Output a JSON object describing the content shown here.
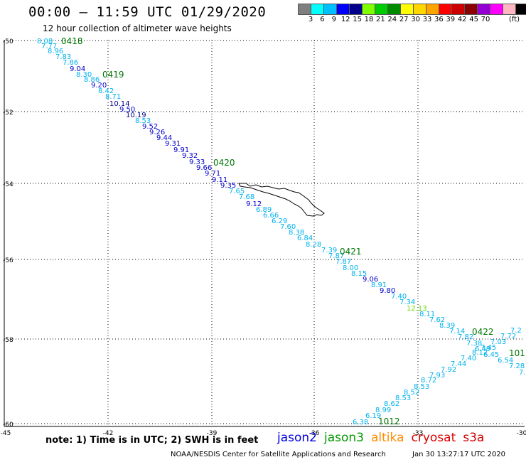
{
  "title": "00:00 — 11:59 UTC 01/29/2020",
  "subtitle": "12 hour collection of altimeter wave heights",
  "scale": {
    "colors": [
      "#7f7f7f",
      "#00ffff",
      "#00bfff",
      "#0000ff",
      "#00008b",
      "#7fff00",
      "#00cd00",
      "#008b00",
      "#ffff00",
      "#ffd700",
      "#ffa500",
      "#ff0000",
      "#cd0000",
      "#8b0000",
      "#9400d3",
      "#ff00ff",
      "#ffb6c1",
      "#000000"
    ],
    "labels": [
      "3",
      "6",
      "9",
      "12",
      "15",
      "18",
      "21",
      "24",
      "27",
      "30",
      "33",
      "36",
      "39",
      "42",
      "45",
      "70"
    ],
    "unit": "(ft)"
  },
  "map": {
    "lon_labels": [
      "-42",
      "-39",
      "-36",
      "-33"
    ],
    "lat_labels": [
      "-50",
      "-52",
      "-54",
      "-56",
      "-58",
      "-60"
    ],
    "corner_labels": [
      "-45",
      "-30"
    ],
    "times": [
      {
        "label": "0418",
        "color": "#007700"
      },
      {
        "label": "0419",
        "color": "#007700"
      },
      {
        "label": "0420",
        "color": "#007700"
      },
      {
        "label": "0421",
        "color": "#007700"
      },
      {
        "label": "0422",
        "color": "#007700"
      },
      {
        "label": "1012",
        "color": "#007700"
      },
      {
        "label": "101",
        "color": "#007700"
      }
    ],
    "track1_values": [
      {
        "v": "8.08",
        "c": "#00b2ee"
      },
      {
        "v": "7.77",
        "c": "#00b2ee"
      },
      {
        "v": "8.96",
        "c": "#00b2ee"
      },
      {
        "v": "7.83",
        "c": "#00b2ee"
      },
      {
        "v": "7.86",
        "c": "#00b2ee"
      },
      {
        "v": "9.04",
        "c": "#0000cc"
      },
      {
        "v": "8.30",
        "c": "#00b2ee"
      },
      {
        "v": "8.86",
        "c": "#00b2ee"
      },
      {
        "v": "9.20",
        "c": "#0000cc"
      },
      {
        "v": "8.42",
        "c": "#00b2ee"
      },
      {
        "v": "8.71",
        "c": "#00b2ee"
      },
      {
        "v": "10.14",
        "c": "#00008b"
      },
      {
        "v": "9.50",
        "c": "#0000cc"
      },
      {
        "v": "10.19",
        "c": "#00008b"
      },
      {
        "v": "8.53",
        "c": "#00b2ee"
      },
      {
        "v": "9.52",
        "c": "#0000cc"
      },
      {
        "v": "9.26",
        "c": "#0000cc"
      },
      {
        "v": "9.44",
        "c": "#0000cc"
      },
      {
        "v": "9.31",
        "c": "#0000cc"
      },
      {
        "v": "9.91",
        "c": "#0000cc"
      },
      {
        "v": "9.32",
        "c": "#0000cc"
      },
      {
        "v": "9.33",
        "c": "#0000cc"
      },
      {
        "v": "9.66",
        "c": "#0000cc"
      },
      {
        "v": "9.71",
        "c": "#0000cc"
      },
      {
        "v": "9.11",
        "c": "#0000cc"
      },
      {
        "v": "9.35",
        "c": "#0000cc"
      },
      {
        "v": "7.65",
        "c": "#00b2ee"
      },
      {
        "v": "7.68",
        "c": "#00b2ee"
      },
      {
        "v": "9.12",
        "c": "#0000cc"
      },
      {
        "v": "6.89",
        "c": "#00b2ee"
      },
      {
        "v": "6.66",
        "c": "#00b2ee"
      },
      {
        "v": "6.29",
        "c": "#00b2ee"
      },
      {
        "v": "7.60",
        "c": "#00b2ee"
      },
      {
        "v": "8.38",
        "c": "#00b2ee"
      },
      {
        "v": "6.84",
        "c": "#00b2ee"
      },
      {
        "v": "8.28",
        "c": "#00b2ee"
      },
      {
        "v": "7.39",
        "c": "#00b2ee"
      },
      {
        "v": "7.87",
        "c": "#00b2ee"
      },
      {
        "v": "7.87",
        "c": "#00b2ee"
      },
      {
        "v": "8.00",
        "c": "#00b2ee"
      },
      {
        "v": "8.15",
        "c": "#00b2ee"
      },
      {
        "v": "9.06",
        "c": "#0000cc"
      },
      {
        "v": "8.91",
        "c": "#00b2ee"
      },
      {
        "v": "9.80",
        "c": "#0000cc"
      },
      {
        "v": "7.40",
        "c": "#00b2ee"
      },
      {
        "v": "7.34",
        "c": "#00b2ee"
      },
      {
        "v": "12.13",
        "c": "#66dd00"
      },
      {
        "v": "8.11",
        "c": "#00b2ee"
      },
      {
        "v": "7.62",
        "c": "#00b2ee"
      },
      {
        "v": "8.39",
        "c": "#00b2ee"
      },
      {
        "v": "7.14",
        "c": "#00b2ee"
      },
      {
        "v": "7.82",
        "c": "#00b2ee"
      },
      {
        "v": "7.38",
        "c": "#00b2ee"
      },
      {
        "v": "6.49",
        "c": "#00b2ee"
      },
      {
        "v": "6.45",
        "c": "#00b2ee"
      },
      {
        "v": "6.54",
        "c": "#00b2ee"
      },
      {
        "v": "7.28",
        "c": "#00b2ee"
      },
      {
        "v": "7.",
        "c": "#00b2ee"
      }
    ],
    "track2_values": [
      {
        "v": "6.38",
        "c": "#00b2ee"
      },
      {
        "v": "6.19",
        "c": "#00b2ee"
      },
      {
        "v": "8.99",
        "c": "#00b2ee"
      },
      {
        "v": "8.62",
        "c": "#00b2ee"
      },
      {
        "v": "8.53",
        "c": "#00b2ee"
      },
      {
        "v": "8.52",
        "c": "#00b2ee"
      },
      {
        "v": "8.53",
        "c": "#00b2ee"
      },
      {
        "v": "8.72",
        "c": "#00b2ee"
      },
      {
        "v": "7.93",
        "c": "#00b2ee"
      },
      {
        "v": "7.92",
        "c": "#00b2ee"
      },
      {
        "v": "7.44",
        "c": "#00b2ee"
      },
      {
        "v": "7.40",
        "c": "#00b2ee"
      },
      {
        "v": "8.12",
        "c": "#00b2ee"
      },
      {
        "v": "7.45",
        "c": "#00b2ee"
      },
      {
        "v": "7.03",
        "c": "#00b2ee"
      },
      {
        "v": "7.72",
        "c": "#00b2ee"
      },
      {
        "v": "7.2",
        "c": "#00b2ee"
      }
    ]
  },
  "note": "note: 1) Time is in UTC; 2) SWH is in feet",
  "satellites": [
    {
      "name": "jason2",
      "color": "#0000dd"
    },
    {
      "name": "jason3",
      "color": "#009900"
    },
    {
      "name": "altika",
      "color": "#ff8c00"
    },
    {
      "name": "cryosat",
      "color": "#dd0000"
    },
    {
      "name": "s3a",
      "color": "#cc0000"
    }
  ],
  "credit": "NOAA/NESDIS Center for Satellite Applications and Research",
  "timestamp": "Jan 30 13:27:17 UTC 2020"
}
